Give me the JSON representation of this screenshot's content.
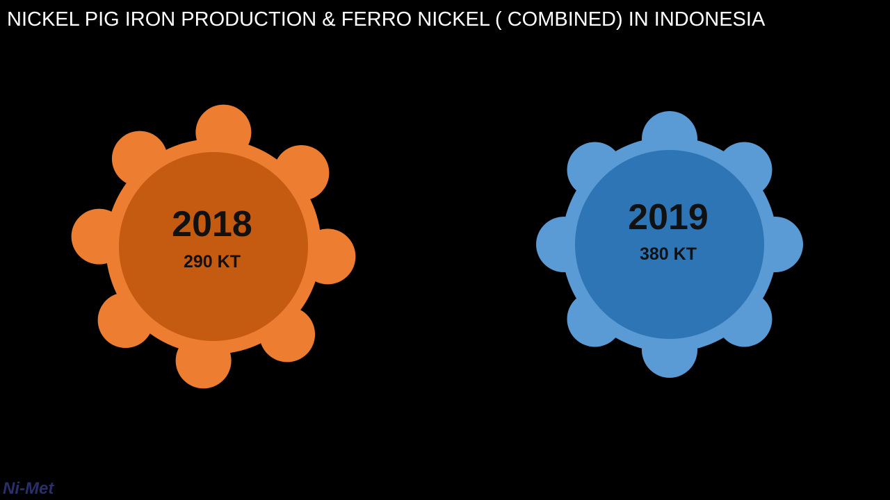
{
  "header": {
    "title": "NICKEL PIG IRON PRODUCTION & FERRO NICKEL ( COMBINED) IN INDONESIA"
  },
  "items": [
    {
      "year": "2018",
      "value": "290 KT"
    },
    {
      "year": "2019",
      "value": "380 KT"
    }
  ],
  "logo": "Ni-Met"
}
